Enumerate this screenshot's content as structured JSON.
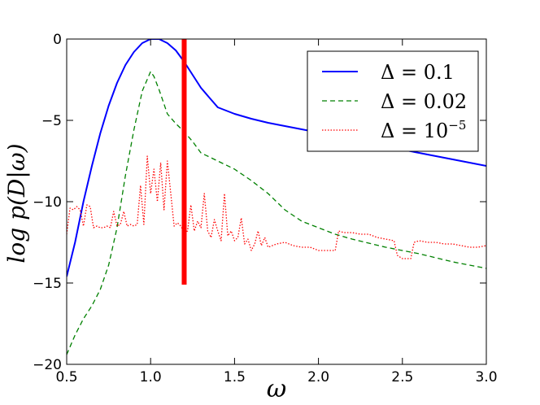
{
  "chart_data": {
    "type": "line",
    "xlabel": "ω",
    "ylabel": "log p(D|ω)",
    "xlim": [
      0.5,
      3.0
    ],
    "ylim": [
      -20,
      0
    ],
    "x_ticks": [
      "0.5",
      "1.0",
      "1.5",
      "2.0",
      "2.5",
      "3.0"
    ],
    "y_ticks": [
      "0",
      "−5",
      "−10",
      "−15",
      "−20"
    ],
    "grid": false,
    "legend_position": "top-right",
    "colors": {
      "blue": "#0000ff",
      "green": "#008000",
      "red": "#ff0000",
      "marker": "#ff0000"
    },
    "series": [
      {
        "name": "Δ = 0.1",
        "legend_main": "Δ = 0.1",
        "legend_sup": "",
        "color": "#0000ff",
        "style": "solid",
        "x": [
          0.5,
          0.55,
          0.6,
          0.65,
          0.7,
          0.75,
          0.8,
          0.85,
          0.9,
          0.95,
          1.0,
          1.05,
          1.1,
          1.15,
          1.2,
          1.25,
          1.3,
          1.35,
          1.4,
          1.45,
          1.5,
          1.6,
          1.7,
          1.8,
          1.9,
          2.0,
          2.2,
          2.4,
          2.6,
          2.8,
          3.0
        ],
        "y": [
          -14.6,
          -12.5,
          -10.0,
          -7.8,
          -5.8,
          -4.1,
          -2.7,
          -1.6,
          -0.8,
          -0.25,
          0.0,
          0.0,
          -0.25,
          -0.7,
          -1.4,
          -2.2,
          -3.0,
          -3.6,
          -4.2,
          -4.4,
          -4.6,
          -4.9,
          -5.15,
          -5.35,
          -5.55,
          -5.75,
          -6.2,
          -6.6,
          -7.0,
          -7.4,
          -7.8
        ]
      },
      {
        "name": "Δ = 0.02",
        "legend_main": "Δ = 0.02",
        "legend_sup": "",
        "color": "#008000",
        "style": "dashed",
        "x": [
          0.5,
          0.55,
          0.6,
          0.65,
          0.7,
          0.75,
          0.8,
          0.85,
          0.9,
          0.95,
          1.0,
          1.02,
          1.05,
          1.1,
          1.15,
          1.2,
          1.25,
          1.3,
          1.4,
          1.5,
          1.6,
          1.7,
          1.8,
          1.9,
          2.0,
          2.1,
          2.2,
          2.4,
          2.6,
          2.8,
          3.0
        ],
        "y": [
          -19.4,
          -18.2,
          -17.2,
          -16.4,
          -15.4,
          -13.9,
          -11.6,
          -8.4,
          -5.6,
          -3.2,
          -2.0,
          -2.3,
          -3.1,
          -4.6,
          -5.2,
          -5.7,
          -6.3,
          -7.0,
          -7.5,
          -8.0,
          -8.7,
          -9.5,
          -10.5,
          -11.2,
          -11.6,
          -12.0,
          -12.3,
          -12.8,
          -13.2,
          -13.7,
          -14.1
        ]
      },
      {
        "name": "Δ = 10−5",
        "legend_main": "Δ = 10",
        "legend_sup": "−5",
        "color": "#ff0000",
        "style": "dotted",
        "x": [
          0.5,
          0.52,
          0.54,
          0.56,
          0.58,
          0.6,
          0.62,
          0.64,
          0.66,
          0.68,
          0.7,
          0.72,
          0.74,
          0.76,
          0.78,
          0.8,
          0.82,
          0.84,
          0.86,
          0.88,
          0.9,
          0.92,
          0.94,
          0.96,
          0.98,
          1.0,
          1.02,
          1.04,
          1.06,
          1.08,
          1.1,
          1.12,
          1.14,
          1.16,
          1.18,
          1.2,
          1.22,
          1.24,
          1.26,
          1.28,
          1.3,
          1.32,
          1.34,
          1.36,
          1.38,
          1.4,
          1.42,
          1.44,
          1.46,
          1.48,
          1.5,
          1.52,
          1.54,
          1.56,
          1.58,
          1.6,
          1.62,
          1.64,
          1.66,
          1.68,
          1.7,
          1.75,
          1.8,
          1.85,
          1.9,
          1.95,
          2.0,
          2.05,
          2.1,
          2.12,
          2.15,
          2.2,
          2.25,
          2.3,
          2.35,
          2.4,
          2.45,
          2.47,
          2.5,
          2.55,
          2.57,
          2.6,
          2.65,
          2.7,
          2.75,
          2.8,
          2.85,
          2.9,
          2.95,
          3.0
        ],
        "y": [
          -12.0,
          -10.4,
          -10.5,
          -10.3,
          -10.5,
          -11.5,
          -10.2,
          -10.3,
          -11.6,
          -11.5,
          -11.6,
          -11.6,
          -11.5,
          -11.6,
          -10.6,
          -11.5,
          -11.4,
          -10.6,
          -11.5,
          -11.4,
          -11.5,
          -11.4,
          -9.0,
          -11.4,
          -7.2,
          -9.5,
          -8.0,
          -10.0,
          -7.6,
          -10.5,
          -7.5,
          -9.5,
          -11.5,
          -11.3,
          -11.5,
          -11.9,
          -11.8,
          -10.2,
          -11.8,
          -11.2,
          -11.6,
          -9.5,
          -11.8,
          -12.2,
          -11.1,
          -11.8,
          -12.4,
          -9.5,
          -12.1,
          -11.8,
          -12.4,
          -12.2,
          -11.0,
          -12.6,
          -12.3,
          -13.0,
          -12.6,
          -11.8,
          -12.7,
          -12.2,
          -12.8,
          -12.6,
          -12.5,
          -12.7,
          -12.8,
          -12.8,
          -13.0,
          -13.0,
          -13.0,
          -11.8,
          -11.9,
          -11.9,
          -12.0,
          -12.0,
          -12.2,
          -12.3,
          -12.4,
          -13.3,
          -13.5,
          -13.5,
          -12.5,
          -12.4,
          -12.5,
          -12.5,
          -12.6,
          -12.6,
          -12.7,
          -12.8,
          -12.8,
          -12.7
        ]
      }
    ],
    "vertical_marker": {
      "x": 1.2,
      "y_from": 0,
      "y_to": -15.1,
      "color": "#ff0000"
    }
  }
}
